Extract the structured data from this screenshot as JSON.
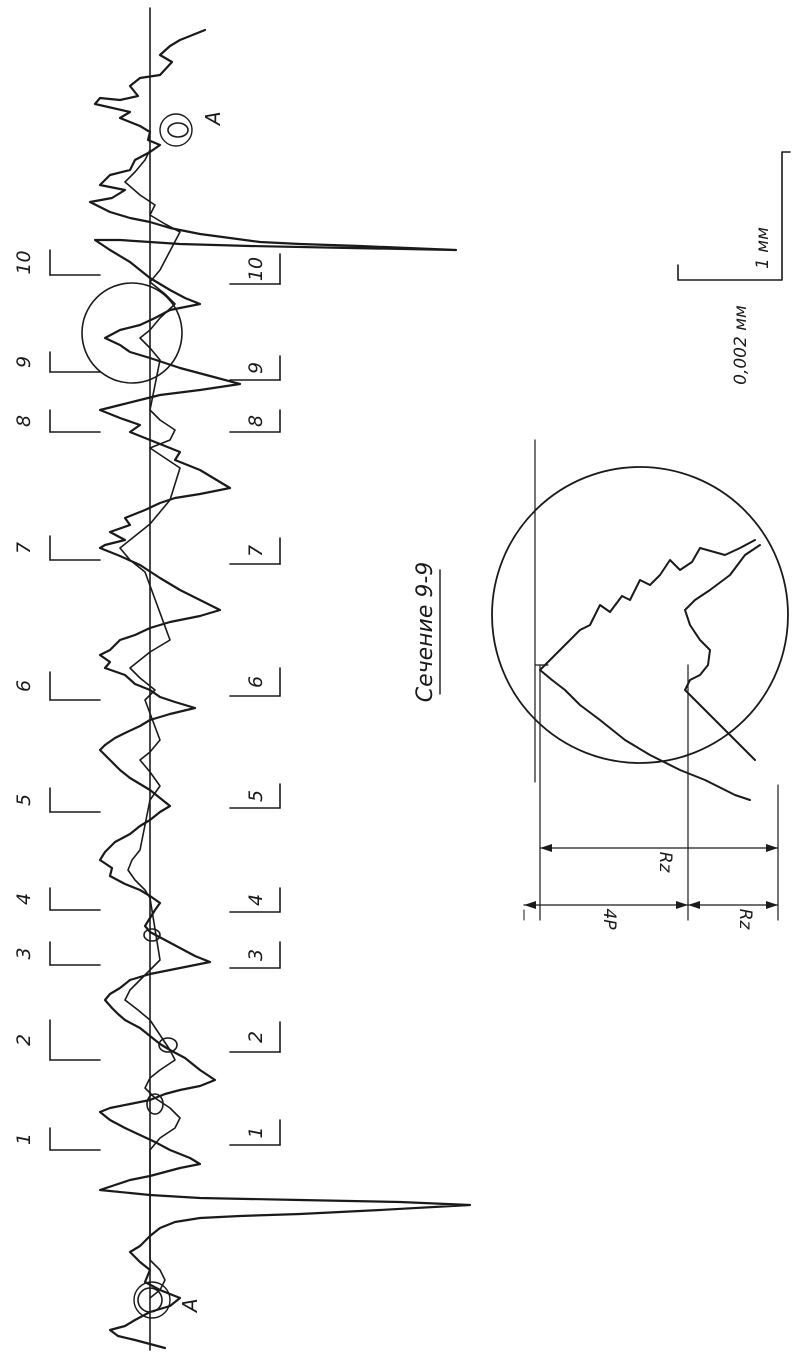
{
  "section_numbers": [
    "1",
    "2",
    "3",
    "4",
    "5",
    "6",
    "7",
    "8",
    "9",
    "10"
  ],
  "point_label": "A",
  "caption": "Сечение 9-9",
  "scale": {
    "vertical": "0,002 мм",
    "horizontal": "1 мм"
  },
  "detail": {
    "dims": [
      "Rz",
      "Rz",
      "4P"
    ]
  }
}
